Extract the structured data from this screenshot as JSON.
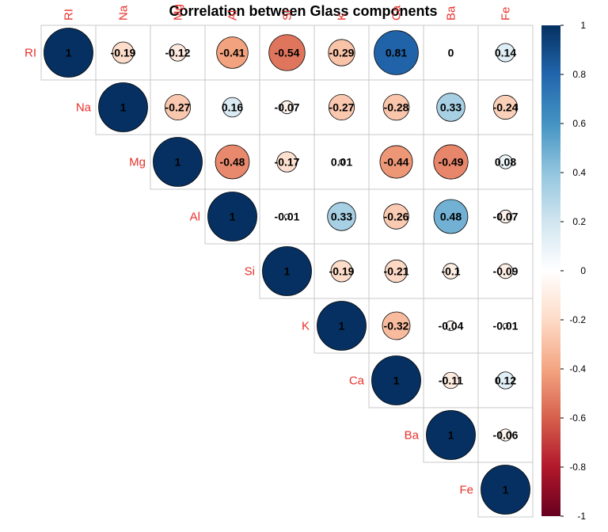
{
  "chart_data": {
    "type": "heatmap",
    "subtype": "correlation-matrix-upper-circles",
    "title": "Correlation between Glass components",
    "variables": [
      "RI",
      "Na",
      "Mg",
      "Al",
      "Si",
      "K",
      "Ca",
      "Ba",
      "Fe"
    ],
    "matrix": [
      [
        1,
        -0.19,
        -0.12,
        -0.41,
        -0.54,
        -0.29,
        0.81,
        0,
        0.14
      ],
      [
        null,
        1,
        -0.27,
        0.16,
        -0.07,
        -0.27,
        -0.28,
        0.33,
        -0.24
      ],
      [
        null,
        null,
        1,
        -0.48,
        -0.17,
        0.01,
        -0.44,
        -0.49,
        0.08
      ],
      [
        null,
        null,
        null,
        1,
        -0.01,
        0.33,
        -0.26,
        0.48,
        -0.07
      ],
      [
        null,
        null,
        null,
        null,
        1,
        -0.19,
        -0.21,
        -0.1,
        -0.09
      ],
      [
        null,
        null,
        null,
        null,
        null,
        1,
        -0.32,
        -0.04,
        -0.01
      ],
      [
        null,
        null,
        null,
        null,
        null,
        null,
        1,
        -0.11,
        0.12
      ],
      [
        null,
        null,
        null,
        null,
        null,
        null,
        null,
        1,
        -0.06
      ],
      [
        null,
        null,
        null,
        null,
        null,
        null,
        null,
        null,
        1
      ]
    ],
    "labels": [
      [
        "1",
        "-0.19",
        "-0.12",
        "-0.41",
        "-0.54",
        "-0.29",
        "0.81",
        "0",
        "0.14"
      ],
      [
        "",
        "1",
        "-0.27",
        "0.16",
        "-0.07",
        "-0.27",
        "-0.28",
        "0.33",
        "-0.24"
      ],
      [
        "",
        "",
        "1",
        "-0.48",
        "-0.17",
        "0.01",
        "-0.44",
        "-0.49",
        "0.08"
      ],
      [
        "",
        "",
        "",
        "1",
        "-0.01",
        "0.33",
        "-0.26",
        "0.48",
        "-0.07"
      ],
      [
        "",
        "",
        "",
        "",
        "1",
        "-0.19",
        "-0.21",
        "-0.1",
        "-0.09"
      ],
      [
        "",
        "",
        "",
        "",
        "",
        "1",
        "-0.32",
        "-0.04",
        "-0.01"
      ],
      [
        "",
        "",
        "",
        "",
        "",
        "",
        "1",
        "-0.11",
        "0.12"
      ],
      [
        "",
        "",
        "",
        "",
        "",
        "",
        "",
        "1",
        "-0.06"
      ],
      [
        "",
        "",
        "",
        "",
        "",
        "",
        "",
        "",
        "1"
      ]
    ],
    "color_scale": {
      "range": [
        -1,
        1
      ],
      "ticks": [
        "-1",
        "-0.8",
        "-0.6",
        "-0.4",
        "-0.2",
        "0",
        "0.2",
        "0.4",
        "0.6",
        "0.8",
        "1"
      ],
      "stops": [
        "#67001F",
        "#B2182B",
        "#D6604D",
        "#F4A582",
        "#FDDBC7",
        "#FFFFFF",
        "#D1E5F0",
        "#92C5DE",
        "#4393C3",
        "#2166AC",
        "#053061"
      ],
      "legend_position": "right"
    },
    "label_color": "#e8302a",
    "grid": true
  }
}
